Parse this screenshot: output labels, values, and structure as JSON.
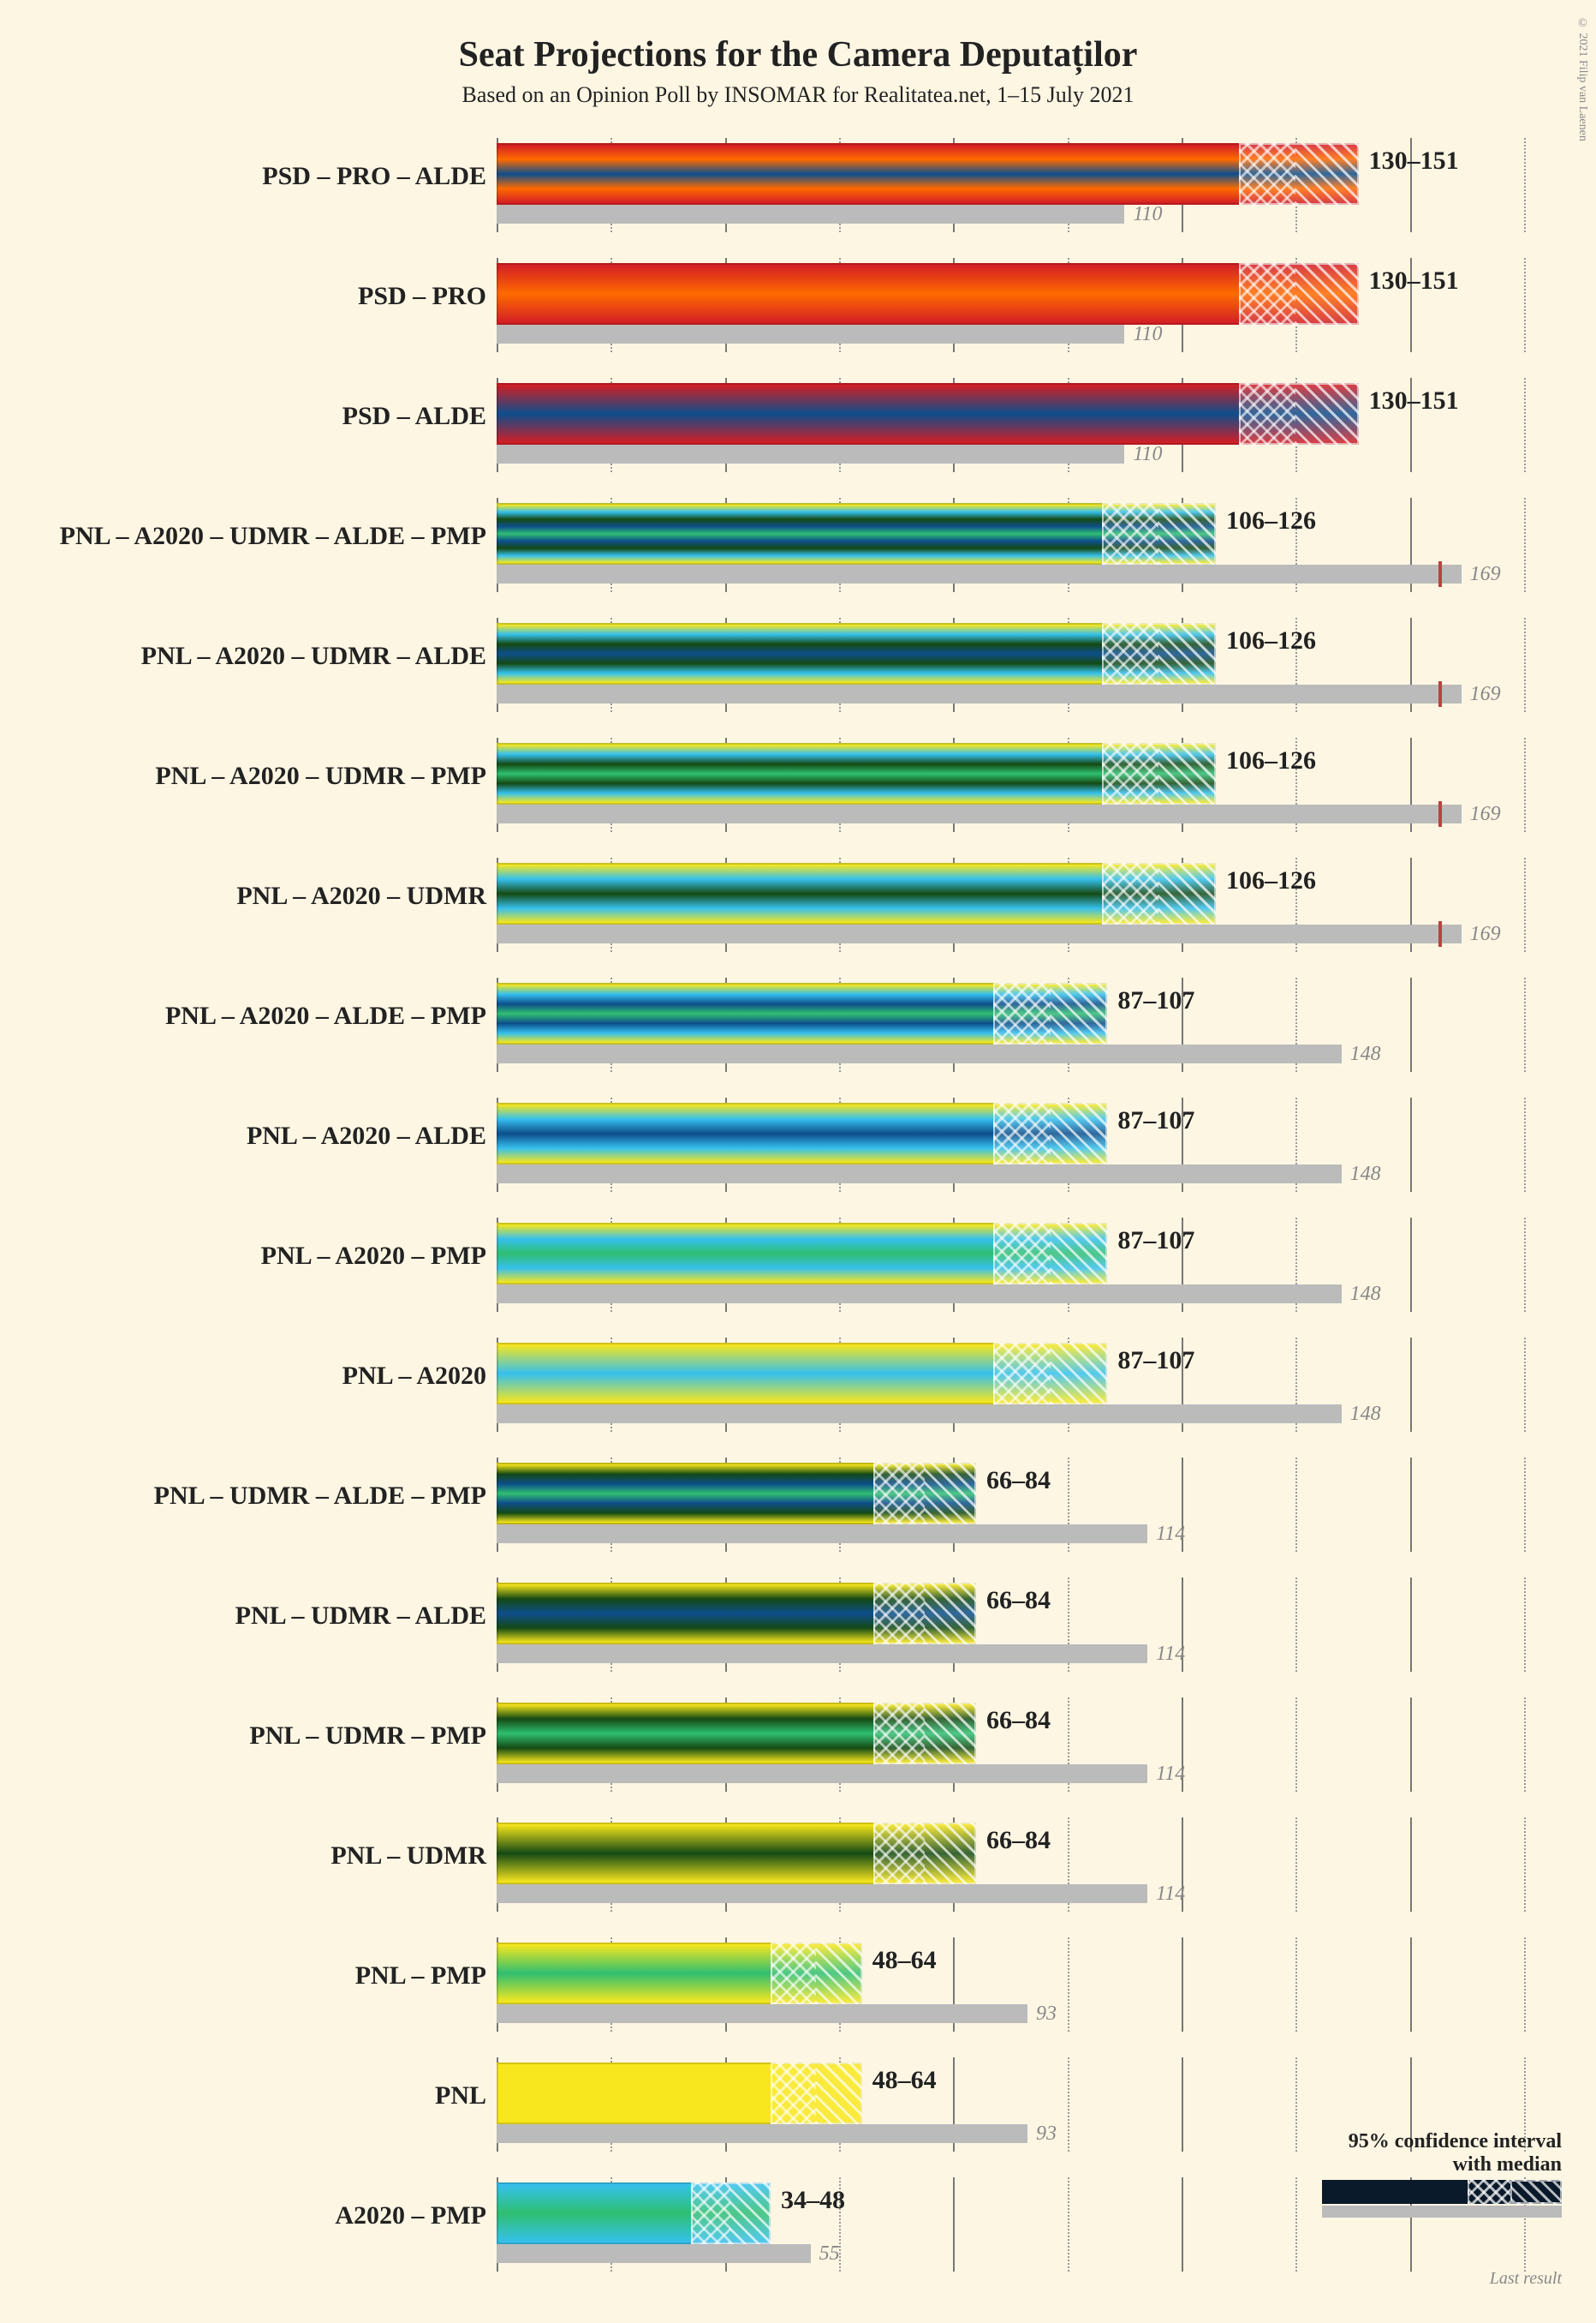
{
  "title": "Seat Projections for the Camera Deputaților",
  "subtitle": "Based on an Opinion Poll by INSOMAR for Realitatea.net, 1–15 July 2021",
  "copyright": "© 2021 Filip van Laenen",
  "chart": {
    "x_max": 180,
    "grid_step": 20,
    "axis_color": "#999",
    "background": "#fdf6e3",
    "text_color": "#222",
    "last_color": "#bbb",
    "last_value_color": "#888",
    "majority_mark_color": "#c04040"
  },
  "legend": {
    "line1": "95% confidence interval",
    "line2": "with median",
    "last_label": "Last result"
  },
  "party_colors": {
    "PSD": "#d31e25",
    "PRO": "#ff6a00",
    "ALDE": "#0d4e8b",
    "PNL": "#f8e71c",
    "A2020": "#35c0ed",
    "UDMR": "#144a14",
    "PMP": "#2fbf71"
  },
  "rows": [
    {
      "label": "PSD – PRO – ALDE",
      "parties": [
        "PSD",
        "PRO",
        "ALDE"
      ],
      "low": 130,
      "median": 140,
      "high": 151,
      "last": 110,
      "range": "130–151",
      "lastval": "110"
    },
    {
      "label": "PSD – PRO",
      "parties": [
        "PSD",
        "PRO"
      ],
      "low": 130,
      "median": 140,
      "high": 151,
      "last": 110,
      "range": "130–151",
      "lastval": "110"
    },
    {
      "label": "PSD – ALDE",
      "parties": [
        "PSD",
        "ALDE"
      ],
      "low": 130,
      "median": 140,
      "high": 151,
      "last": 110,
      "range": "130–151",
      "lastval": "110"
    },
    {
      "label": "PNL – A2020 – UDMR – ALDE – PMP",
      "parties": [
        "PNL",
        "A2020",
        "UDMR",
        "ALDE",
        "PMP"
      ],
      "low": 106,
      "median": 116,
      "high": 126,
      "last": 169,
      "range": "106–126",
      "lastval": "169"
    },
    {
      "label": "PNL – A2020 – UDMR – ALDE",
      "parties": [
        "PNL",
        "A2020",
        "UDMR",
        "ALDE"
      ],
      "low": 106,
      "median": 116,
      "high": 126,
      "last": 169,
      "range": "106–126",
      "lastval": "169"
    },
    {
      "label": "PNL – A2020 – UDMR – PMP",
      "parties": [
        "PNL",
        "A2020",
        "UDMR",
        "PMP"
      ],
      "low": 106,
      "median": 116,
      "high": 126,
      "last": 169,
      "range": "106–126",
      "lastval": "169"
    },
    {
      "label": "PNL – A2020 – UDMR",
      "parties": [
        "PNL",
        "A2020",
        "UDMR"
      ],
      "low": 106,
      "median": 116,
      "high": 126,
      "last": 169,
      "range": "106–126",
      "lastval": "169"
    },
    {
      "label": "PNL – A2020 – ALDE – PMP",
      "parties": [
        "PNL",
        "A2020",
        "ALDE",
        "PMP"
      ],
      "low": 87,
      "median": 97,
      "high": 107,
      "last": 148,
      "range": "87–107",
      "lastval": "148"
    },
    {
      "label": "PNL – A2020 – ALDE",
      "parties": [
        "PNL",
        "A2020",
        "ALDE"
      ],
      "low": 87,
      "median": 97,
      "high": 107,
      "last": 148,
      "range": "87–107",
      "lastval": "148"
    },
    {
      "label": "PNL – A2020 – PMP",
      "parties": [
        "PNL",
        "A2020",
        "PMP"
      ],
      "low": 87,
      "median": 97,
      "high": 107,
      "last": 148,
      "range": "87–107",
      "lastval": "148"
    },
    {
      "label": "PNL – A2020",
      "parties": [
        "PNL",
        "A2020"
      ],
      "low": 87,
      "median": 97,
      "high": 107,
      "last": 148,
      "range": "87–107",
      "lastval": "148"
    },
    {
      "label": "PNL – UDMR – ALDE – PMP",
      "parties": [
        "PNL",
        "UDMR",
        "ALDE",
        "PMP"
      ],
      "low": 66,
      "median": 75,
      "high": 84,
      "last": 114,
      "range": "66–84",
      "lastval": "114"
    },
    {
      "label": "PNL – UDMR – ALDE",
      "parties": [
        "PNL",
        "UDMR",
        "ALDE"
      ],
      "low": 66,
      "median": 75,
      "high": 84,
      "last": 114,
      "range": "66–84",
      "lastval": "114"
    },
    {
      "label": "PNL – UDMR – PMP",
      "parties": [
        "PNL",
        "UDMR",
        "PMP"
      ],
      "low": 66,
      "median": 75,
      "high": 84,
      "last": 114,
      "range": "66–84",
      "lastval": "114"
    },
    {
      "label": "PNL – UDMR",
      "parties": [
        "PNL",
        "UDMR"
      ],
      "low": 66,
      "median": 75,
      "high": 84,
      "last": 114,
      "range": "66–84",
      "lastval": "114"
    },
    {
      "label": "PNL – PMP",
      "parties": [
        "PNL",
        "PMP"
      ],
      "low": 48,
      "median": 56,
      "high": 64,
      "last": 93,
      "range": "48–64",
      "lastval": "93"
    },
    {
      "label": "PNL",
      "parties": [
        "PNL"
      ],
      "low": 48,
      "median": 56,
      "high": 64,
      "last": 93,
      "range": "48–64",
      "lastval": "93"
    },
    {
      "label": "A2020 – PMP",
      "parties": [
        "A2020",
        "PMP"
      ],
      "low": 34,
      "median": 41,
      "high": 48,
      "last": 55,
      "range": "34–48",
      "lastval": "55"
    }
  ]
}
